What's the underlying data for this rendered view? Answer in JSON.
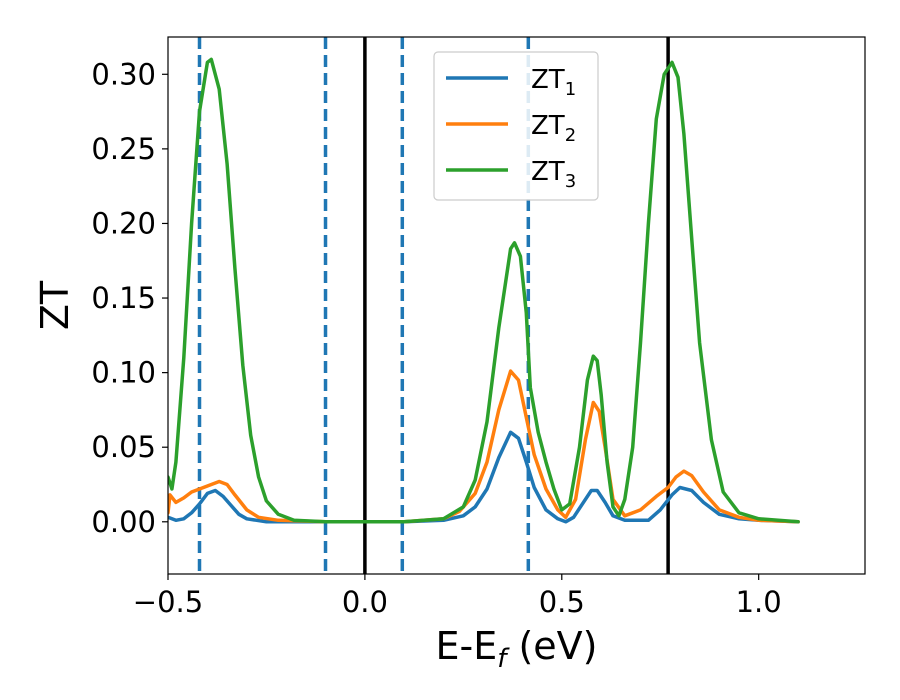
{
  "chart_data": {
    "type": "line",
    "title": "",
    "xlabel_main": "E-E",
    "xlabel_sub": "f",
    "xlabel_tail": " (eV)",
    "ylabel": "ZT",
    "xlim": [
      -0.5,
      1.27
    ],
    "ylim": [
      -0.035,
      0.325
    ],
    "grid": false,
    "legend_position": "top-center",
    "xticks": [
      {
        "value": -0.5,
        "label": "−0.5"
      },
      {
        "value": 0.0,
        "label": "0.0"
      },
      {
        "value": 0.5,
        "label": "0.5"
      },
      {
        "value": 1.0,
        "label": "1.0"
      }
    ],
    "yticks": [
      {
        "value": 0.0,
        "label": "0.00"
      },
      {
        "value": 0.05,
        "label": "0.05"
      },
      {
        "value": 0.1,
        "label": "0.10"
      },
      {
        "value": 0.15,
        "label": "0.15"
      },
      {
        "value": 0.2,
        "label": "0.20"
      },
      {
        "value": 0.25,
        "label": "0.25"
      },
      {
        "value": 0.3,
        "label": "0.30"
      }
    ],
    "vlines_solid": {
      "color": "#000000",
      "x": [
        0.0,
        0.77
      ]
    },
    "vlines_dashed": {
      "color": "#1f77b4",
      "x": [
        -0.42,
        -0.1,
        0.095,
        0.415
      ]
    },
    "series": [
      {
        "name": "ZT",
        "subscript": "1",
        "color": "#1f77b4",
        "points": [
          [
            -0.5,
            0.003
          ],
          [
            -0.48,
            0.001
          ],
          [
            -0.46,
            0.002
          ],
          [
            -0.44,
            0.006
          ],
          [
            -0.42,
            0.012
          ],
          [
            -0.4,
            0.019
          ],
          [
            -0.38,
            0.021
          ],
          [
            -0.36,
            0.017
          ],
          [
            -0.34,
            0.011
          ],
          [
            -0.32,
            0.005
          ],
          [
            -0.3,
            0.002
          ],
          [
            -0.25,
            0.0
          ],
          [
            -0.1,
            0.0
          ],
          [
            0.1,
            0.0
          ],
          [
            0.2,
            0.001
          ],
          [
            0.25,
            0.004
          ],
          [
            0.28,
            0.01
          ],
          [
            0.31,
            0.022
          ],
          [
            0.34,
            0.043
          ],
          [
            0.37,
            0.06
          ],
          [
            0.39,
            0.056
          ],
          [
            0.41,
            0.04
          ],
          [
            0.43,
            0.023
          ],
          [
            0.46,
            0.008
          ],
          [
            0.49,
            0.002
          ],
          [
            0.51,
            0.0
          ],
          [
            0.53,
            0.003
          ],
          [
            0.555,
            0.013
          ],
          [
            0.575,
            0.021
          ],
          [
            0.59,
            0.021
          ],
          [
            0.61,
            0.013
          ],
          [
            0.63,
            0.004
          ],
          [
            0.66,
            0.001
          ],
          [
            0.72,
            0.001
          ],
          [
            0.75,
            0.008
          ],
          [
            0.78,
            0.018
          ],
          [
            0.8,
            0.023
          ],
          [
            0.83,
            0.021
          ],
          [
            0.86,
            0.013
          ],
          [
            0.9,
            0.005
          ],
          [
            0.95,
            0.002
          ],
          [
            1.0,
            0.001
          ],
          [
            1.1,
            0.0
          ]
        ]
      },
      {
        "name": "ZT",
        "subscript": "2",
        "color": "#ff7f0e",
        "points": [
          [
            -0.5,
            0.006
          ],
          [
            -0.495,
            0.018
          ],
          [
            -0.48,
            0.013
          ],
          [
            -0.46,
            0.016
          ],
          [
            -0.44,
            0.02
          ],
          [
            -0.42,
            0.022
          ],
          [
            -0.4,
            0.024
          ],
          [
            -0.37,
            0.027
          ],
          [
            -0.35,
            0.025
          ],
          [
            -0.33,
            0.018
          ],
          [
            -0.3,
            0.008
          ],
          [
            -0.27,
            0.003
          ],
          [
            -0.22,
            0.001
          ],
          [
            -0.1,
            0.0
          ],
          [
            0.1,
            0.0
          ],
          [
            0.2,
            0.002
          ],
          [
            0.24,
            0.007
          ],
          [
            0.28,
            0.019
          ],
          [
            0.31,
            0.04
          ],
          [
            0.34,
            0.075
          ],
          [
            0.37,
            0.101
          ],
          [
            0.39,
            0.095
          ],
          [
            0.41,
            0.07
          ],
          [
            0.43,
            0.045
          ],
          [
            0.46,
            0.022
          ],
          [
            0.49,
            0.008
          ],
          [
            0.51,
            0.003
          ],
          [
            0.535,
            0.015
          ],
          [
            0.56,
            0.055
          ],
          [
            0.58,
            0.08
          ],
          [
            0.595,
            0.074
          ],
          [
            0.61,
            0.05
          ],
          [
            0.63,
            0.015
          ],
          [
            0.66,
            0.004
          ],
          [
            0.7,
            0.008
          ],
          [
            0.74,
            0.017
          ],
          [
            0.77,
            0.023
          ],
          [
            0.79,
            0.03
          ],
          [
            0.81,
            0.034
          ],
          [
            0.83,
            0.031
          ],
          [
            0.86,
            0.02
          ],
          [
            0.9,
            0.008
          ],
          [
            0.95,
            0.003
          ],
          [
            1.0,
            0.001
          ],
          [
            1.1,
            0.0
          ]
        ]
      },
      {
        "name": "ZT",
        "subscript": "3",
        "color": "#2ca02c",
        "points": [
          [
            -0.5,
            0.03
          ],
          [
            -0.49,
            0.022
          ],
          [
            -0.48,
            0.04
          ],
          [
            -0.46,
            0.11
          ],
          [
            -0.44,
            0.2
          ],
          [
            -0.42,
            0.275
          ],
          [
            -0.4,
            0.308
          ],
          [
            -0.39,
            0.31
          ],
          [
            -0.37,
            0.29
          ],
          [
            -0.35,
            0.24
          ],
          [
            -0.33,
            0.17
          ],
          [
            -0.31,
            0.105
          ],
          [
            -0.29,
            0.058
          ],
          [
            -0.27,
            0.03
          ],
          [
            -0.25,
            0.014
          ],
          [
            -0.22,
            0.005
          ],
          [
            -0.18,
            0.001
          ],
          [
            -0.1,
            0.0
          ],
          [
            0.1,
            0.0
          ],
          [
            0.2,
            0.002
          ],
          [
            0.25,
            0.01
          ],
          [
            0.28,
            0.028
          ],
          [
            0.31,
            0.067
          ],
          [
            0.34,
            0.13
          ],
          [
            0.37,
            0.183
          ],
          [
            0.38,
            0.187
          ],
          [
            0.395,
            0.178
          ],
          [
            0.41,
            0.14
          ],
          [
            0.42,
            0.09
          ],
          [
            0.44,
            0.06
          ],
          [
            0.46,
            0.04
          ],
          [
            0.48,
            0.022
          ],
          [
            0.5,
            0.008
          ],
          [
            0.52,
            0.012
          ],
          [
            0.545,
            0.05
          ],
          [
            0.565,
            0.095
          ],
          [
            0.58,
            0.111
          ],
          [
            0.59,
            0.108
          ],
          [
            0.6,
            0.085
          ],
          [
            0.615,
            0.04
          ],
          [
            0.63,
            0.01
          ],
          [
            0.645,
            0.004
          ],
          [
            0.66,
            0.015
          ],
          [
            0.68,
            0.05
          ],
          [
            0.7,
            0.12
          ],
          [
            0.72,
            0.2
          ],
          [
            0.74,
            0.27
          ],
          [
            0.76,
            0.3
          ],
          [
            0.78,
            0.308
          ],
          [
            0.795,
            0.298
          ],
          [
            0.81,
            0.26
          ],
          [
            0.83,
            0.19
          ],
          [
            0.85,
            0.12
          ],
          [
            0.88,
            0.055
          ],
          [
            0.91,
            0.02
          ],
          [
            0.95,
            0.006
          ],
          [
            1.0,
            0.002
          ],
          [
            1.1,
            0.0
          ]
        ]
      }
    ]
  }
}
